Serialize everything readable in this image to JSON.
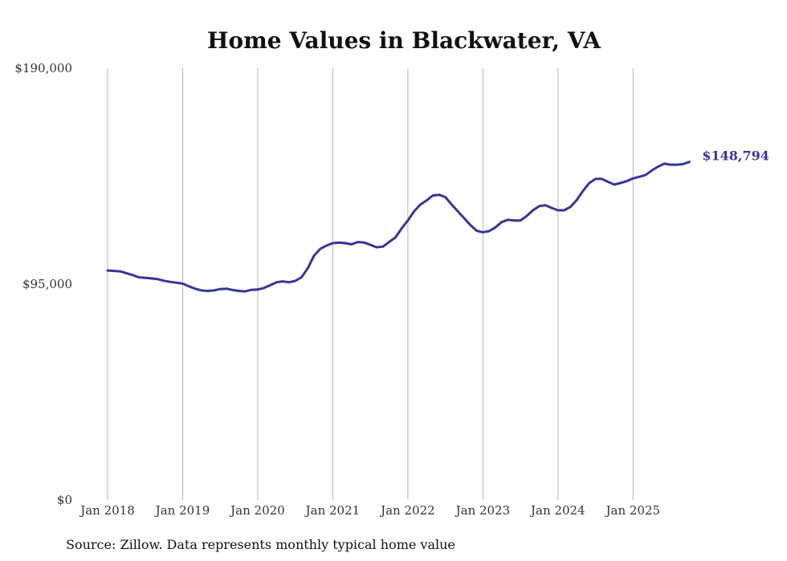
{
  "chart_data": {
    "type": "line",
    "title": "Home Values in Blackwater, VA",
    "xlabel": "",
    "ylabel": "",
    "source": "Source: Zillow. Data represents monthly typical home value",
    "line_color": "#3a3596",
    "grid": "vertical",
    "ylim": [
      0,
      190000
    ],
    "xlim": [
      2018.0,
      2025.917
    ],
    "y_ticks": [
      {
        "value": 0,
        "label": "$0"
      },
      {
        "value": 95000,
        "label": "$95,000"
      },
      {
        "value": 190000,
        "label": "$190,000"
      }
    ],
    "x_ticks": [
      {
        "value": 2018,
        "label": "Jan 2018"
      },
      {
        "value": 2019,
        "label": "Jan 2019"
      },
      {
        "value": 2020,
        "label": "Jan 2020"
      },
      {
        "value": 2021,
        "label": "Jan 2021"
      },
      {
        "value": 2022,
        "label": "Jan 2022"
      },
      {
        "value": 2023,
        "label": "Jan 2023"
      },
      {
        "value": 2024,
        "label": "Jan 2024"
      },
      {
        "value": 2025,
        "label": "Jan 2025"
      }
    ],
    "end_label": "$148,794",
    "series": [
      {
        "name": "Typical home value",
        "points": [
          [
            2018.0,
            101000
          ],
          [
            2018.167,
            100600
          ],
          [
            2018.333,
            99000
          ],
          [
            2018.417,
            98000
          ],
          [
            2018.583,
            97500
          ],
          [
            2018.667,
            97200
          ],
          [
            2018.75,
            96500
          ],
          [
            2018.833,
            96000
          ],
          [
            2019.0,
            95200
          ],
          [
            2019.083,
            94000
          ],
          [
            2019.167,
            93000
          ],
          [
            2019.25,
            92200
          ],
          [
            2019.333,
            92000
          ],
          [
            2019.417,
            92200
          ],
          [
            2019.5,
            92800
          ],
          [
            2019.583,
            93000
          ],
          [
            2019.667,
            92400
          ],
          [
            2019.75,
            92000
          ],
          [
            2019.833,
            91800
          ],
          [
            2019.917,
            92500
          ],
          [
            2020.0,
            92600
          ],
          [
            2020.083,
            93300
          ],
          [
            2020.167,
            94500
          ],
          [
            2020.25,
            95800
          ],
          [
            2020.333,
            96200
          ],
          [
            2020.417,
            95800
          ],
          [
            2020.5,
            96400
          ],
          [
            2020.583,
            98000
          ],
          [
            2020.667,
            102000
          ],
          [
            2020.75,
            107500
          ],
          [
            2020.833,
            110500
          ],
          [
            2020.917,
            112000
          ],
          [
            2021.0,
            113000
          ],
          [
            2021.083,
            113300
          ],
          [
            2021.167,
            113000
          ],
          [
            2021.25,
            112500
          ],
          [
            2021.333,
            113500
          ],
          [
            2021.417,
            113300
          ],
          [
            2021.5,
            112300
          ],
          [
            2021.583,
            111200
          ],
          [
            2021.667,
            111500
          ],
          [
            2021.75,
            113500
          ],
          [
            2021.833,
            115500
          ],
          [
            2021.917,
            119500
          ],
          [
            2022.0,
            123000
          ],
          [
            2022.083,
            127000
          ],
          [
            2022.167,
            130000
          ],
          [
            2022.25,
            131800
          ],
          [
            2022.333,
            134000
          ],
          [
            2022.417,
            134300
          ],
          [
            2022.5,
            133300
          ],
          [
            2022.583,
            130000
          ],
          [
            2022.667,
            127000
          ],
          [
            2022.75,
            124000
          ],
          [
            2022.833,
            121000
          ],
          [
            2022.917,
            118500
          ],
          [
            2023.0,
            117800
          ],
          [
            2023.083,
            118300
          ],
          [
            2023.167,
            120000
          ],
          [
            2023.25,
            122300
          ],
          [
            2023.333,
            123300
          ],
          [
            2023.417,
            123000
          ],
          [
            2023.5,
            123000
          ],
          [
            2023.583,
            125000
          ],
          [
            2023.667,
            127500
          ],
          [
            2023.75,
            129300
          ],
          [
            2023.833,
            129700
          ],
          [
            2023.917,
            128500
          ],
          [
            2024.0,
            127500
          ],
          [
            2024.083,
            127500
          ],
          [
            2024.167,
            129000
          ],
          [
            2024.25,
            132000
          ],
          [
            2024.333,
            136000
          ],
          [
            2024.417,
            139500
          ],
          [
            2024.5,
            141300
          ],
          [
            2024.583,
            141300
          ],
          [
            2024.667,
            140000
          ],
          [
            2024.75,
            138800
          ],
          [
            2024.833,
            139500
          ],
          [
            2024.917,
            140300
          ],
          [
            2025.0,
            141500
          ],
          [
            2025.083,
            142200
          ],
          [
            2025.167,
            143000
          ],
          [
            2025.25,
            145000
          ],
          [
            2025.333,
            146700
          ],
          [
            2025.417,
            148000
          ],
          [
            2025.5,
            147500
          ],
          [
            2025.583,
            147500
          ],
          [
            2025.667,
            147800
          ],
          [
            2025.75,
            148794
          ]
        ]
      }
    ]
  }
}
